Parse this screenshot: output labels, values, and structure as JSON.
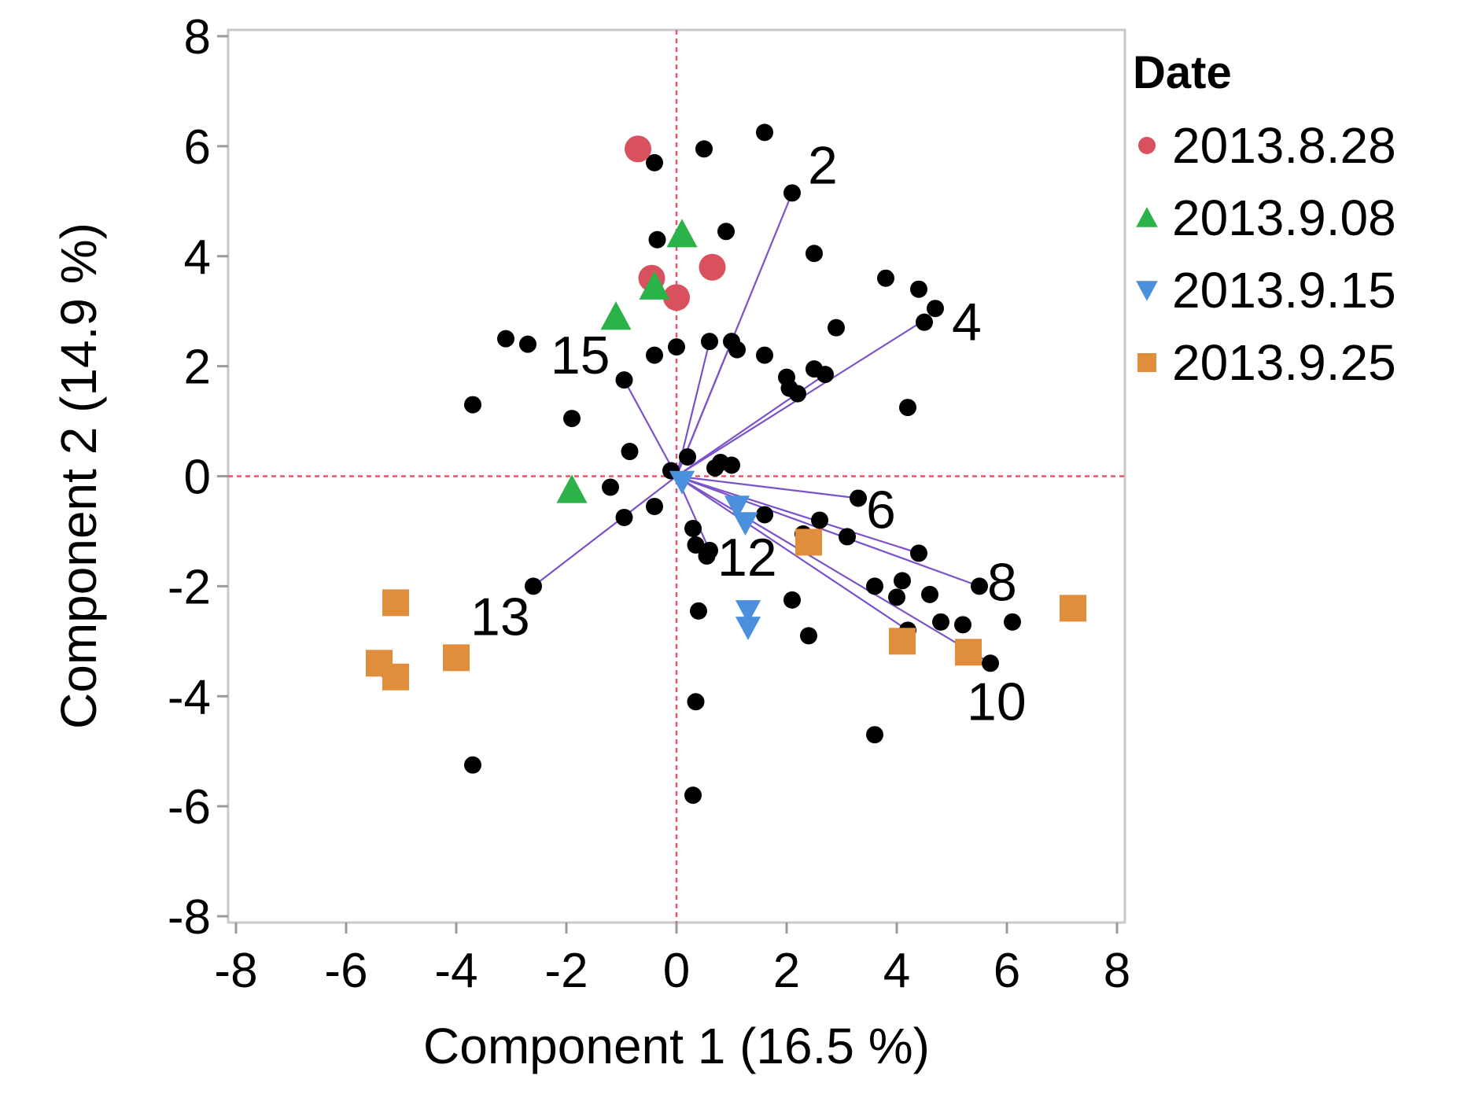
{
  "chart_data": {
    "type": "scatter",
    "title": "",
    "xlabel": "Component 1  (16.5 %)",
    "ylabel": "Component 2  (14.9 %)",
    "xlim": [
      -8,
      8
    ],
    "ylim": [
      -8,
      8
    ],
    "x_ticks": [
      -8,
      -6,
      -4,
      -2,
      0,
      2,
      4,
      6,
      8
    ],
    "y_ticks": [
      -8,
      -6,
      -4,
      -2,
      0,
      2,
      4,
      6,
      8
    ],
    "x_tick_labels": [
      "-8",
      "-6",
      "-4",
      "-2",
      "0",
      "2",
      "4",
      "6",
      "8"
    ],
    "y_tick_labels": [
      "-8",
      "-6",
      "-4",
      "-2",
      "0",
      "2",
      "4",
      "6",
      "8"
    ],
    "grid": false,
    "reference_lines": {
      "x": 0,
      "y": 0,
      "style": "dashed",
      "color": "#e8556a"
    },
    "legend": {
      "title": "Date",
      "position": "right"
    },
    "series": [
      {
        "name": "2013.8.28",
        "marker": "circle",
        "color": "#d9505e",
        "points": [
          [
            -0.7,
            5.95
          ],
          [
            -0.45,
            3.6
          ],
          [
            0.0,
            3.25
          ],
          [
            0.65,
            3.8
          ]
        ]
      },
      {
        "name": "2013.9.08",
        "marker": "triangle-up",
        "color": "#2bb34a",
        "points": [
          [
            0.1,
            4.4
          ],
          [
            -0.4,
            3.45
          ],
          [
            -1.1,
            2.9
          ],
          [
            -1.9,
            -0.25
          ]
        ]
      },
      {
        "name": "2013.9.15",
        "marker": "triangle-down",
        "color": "#4a90dc",
        "points": [
          [
            0.1,
            -0.1
          ],
          [
            1.1,
            -0.55
          ],
          [
            1.25,
            -0.85
          ],
          [
            1.3,
            -2.45
          ],
          [
            1.3,
            -2.75
          ]
        ]
      },
      {
        "name": "2013.9.25",
        "marker": "square",
        "color": "#e08e3c",
        "points": [
          [
            -5.1,
            -2.3
          ],
          [
            -5.4,
            -3.4
          ],
          [
            -5.1,
            -3.65
          ],
          [
            -4.0,
            -3.3
          ],
          [
            2.4,
            -1.2
          ],
          [
            4.1,
            -3.0
          ],
          [
            5.3,
            -3.2
          ],
          [
            7.2,
            -2.4
          ]
        ]
      }
    ],
    "variable_points": {
      "color": "#000000",
      "points": [
        [
          -0.4,
          5.7
        ],
        [
          0.5,
          5.95
        ],
        [
          1.6,
          6.25
        ],
        [
          2.1,
          5.15
        ],
        [
          -0.35,
          4.3
        ],
        [
          0.9,
          4.45
        ],
        [
          2.5,
          4.05
        ],
        [
          3.8,
          3.6
        ],
        [
          4.4,
          3.4
        ],
        [
          4.7,
          3.05
        ],
        [
          4.5,
          2.8
        ],
        [
          2.9,
          2.7
        ],
        [
          -3.1,
          2.5
        ],
        [
          -2.7,
          2.4
        ],
        [
          -0.4,
          2.2
        ],
        [
          0.0,
          2.35
        ],
        [
          0.6,
          2.45
        ],
        [
          1.0,
          2.45
        ],
        [
          1.1,
          2.3
        ],
        [
          1.6,
          2.2
        ],
        [
          2.0,
          1.8
        ],
        [
          2.5,
          1.95
        ],
        [
          2.7,
          1.85
        ],
        [
          2.05,
          1.6
        ],
        [
          2.2,
          1.5
        ],
        [
          -0.95,
          1.75
        ],
        [
          -3.7,
          1.3
        ],
        [
          -1.9,
          1.05
        ],
        [
          4.2,
          1.25
        ],
        [
          -0.85,
          0.45
        ],
        [
          0.2,
          0.35
        ],
        [
          0.8,
          0.25
        ],
        [
          1.0,
          0.2
        ],
        [
          0.7,
          0.15
        ],
        [
          -0.1,
          0.1
        ],
        [
          -1.2,
          -0.2
        ],
        [
          -0.4,
          -0.55
        ],
        [
          -0.95,
          -0.75
        ],
        [
          3.3,
          -0.4
        ],
        [
          1.6,
          -0.7
        ],
        [
          2.6,
          -0.8
        ],
        [
          0.3,
          -0.95
        ],
        [
          3.1,
          -1.1
        ],
        [
          2.3,
          -1.05
        ],
        [
          0.35,
          -1.25
        ],
        [
          0.55,
          -1.45
        ],
        [
          0.6,
          -1.35
        ],
        [
          4.4,
          -1.4
        ],
        [
          -2.6,
          -2.0
        ],
        [
          3.6,
          -2.0
        ],
        [
          4.1,
          -1.9
        ],
        [
          5.5,
          -2.0
        ],
        [
          4.0,
          -2.2
        ],
        [
          4.6,
          -2.15
        ],
        [
          2.1,
          -2.25
        ],
        [
          0.4,
          -2.45
        ],
        [
          4.8,
          -2.65
        ],
        [
          5.2,
          -2.7
        ],
        [
          6.1,
          -2.65
        ],
        [
          4.2,
          -2.8
        ],
        [
          2.4,
          -2.9
        ],
        [
          5.7,
          -3.4
        ],
        [
          -5.2,
          -3.6
        ],
        [
          0.35,
          -4.1
        ],
        [
          3.6,
          -4.7
        ],
        [
          -3.7,
          -5.25
        ],
        [
          0.3,
          -5.8
        ]
      ]
    },
    "loading_vectors": [
      {
        "label": "2",
        "x": 2.1,
        "y": 5.15
      },
      {
        "label": "",
        "x": 0.6,
        "y": 2.45
      },
      {
        "label": "",
        "x": 1.0,
        "y": 2.45
      },
      {
        "label": "",
        "x": 2.7,
        "y": 1.85
      },
      {
        "label": "4",
        "x": 4.6,
        "y": 2.9
      },
      {
        "label": "15",
        "x": -0.95,
        "y": 1.75
      },
      {
        "label": "6",
        "x": 3.3,
        "y": -0.4
      },
      {
        "label": "",
        "x": 4.4,
        "y": -1.4
      },
      {
        "label": "8",
        "x": 5.5,
        "y": -2.0
      },
      {
        "label": "",
        "x": 4.2,
        "y": -2.8
      },
      {
        "label": "10",
        "x": 5.7,
        "y": -3.4
      },
      {
        "label": "12",
        "x": 0.6,
        "y": -1.35
      },
      {
        "label": "13",
        "x": -2.6,
        "y": -2.0
      }
    ]
  }
}
